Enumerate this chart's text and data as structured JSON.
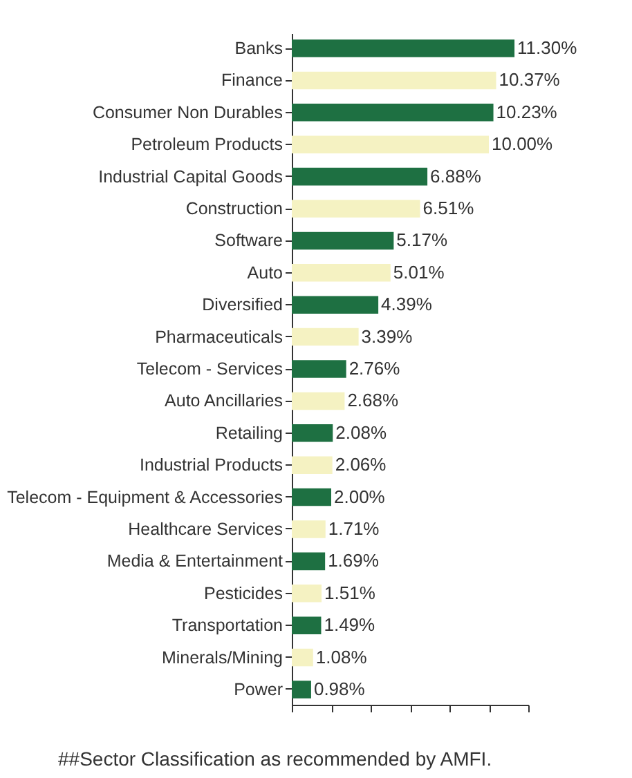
{
  "chart_data": {
    "type": "bar",
    "orientation": "horizontal",
    "categories": [
      "Banks",
      "Finance",
      "Consumer Non Durables",
      "Petroleum Products",
      "Industrial Capital Goods",
      "Construction",
      "Software",
      "Auto",
      "Diversified",
      "Pharmaceuticals",
      "Telecom - Services",
      "Auto Ancillaries",
      "Retailing",
      "Industrial Products",
      "Telecom -  Equipment & Accessories",
      "Healthcare Services",
      "Media & Entertainment",
      "Pesticides",
      "Transportation",
      "Minerals/Mining",
      "Power"
    ],
    "values": [
      11.3,
      10.37,
      10.23,
      10.0,
      6.88,
      6.51,
      5.17,
      5.01,
      4.39,
      3.39,
      2.76,
      2.68,
      2.08,
      2.06,
      2.0,
      1.71,
      1.69,
      1.51,
      1.49,
      1.08,
      0.98
    ],
    "value_labels": [
      "11.30%",
      "10.37%",
      "10.23%",
      "10.00%",
      "6.88%",
      "6.51%",
      "5.17%",
      "5.01%",
      "4.39%",
      "3.39%",
      "2.76%",
      "2.68%",
      "2.08%",
      "2.06%",
      "2.00%",
      "1.71%",
      "1.69%",
      "1.51%",
      "1.49%",
      "1.08%",
      "0.98%"
    ],
    "colors": [
      "#1e7042",
      "#f5f2c2",
      "#1e7042",
      "#f5f2c2",
      "#1e7042",
      "#f5f2c2",
      "#1e7042",
      "#f5f2c2",
      "#1e7042",
      "#f5f2c2",
      "#1e7042",
      "#f5f2c2",
      "#1e7042",
      "#f5f2c2",
      "#1e7042",
      "#f5f2c2",
      "#1e7042",
      "#f5f2c2",
      "#1e7042",
      "#f5f2c2",
      "#1e7042"
    ],
    "xlim": [
      0,
      12
    ],
    "xticks": [
      {
        "value": 0,
        "label": null
      },
      {
        "value": 2,
        "label": null
      },
      {
        "value": 4,
        "label": null
      },
      {
        "value": 6,
        "label": null
      },
      {
        "value": 8,
        "label": null
      },
      {
        "value": 10,
        "label": null
      },
      {
        "value": 12,
        "label": null
      }
    ],
    "tick_labels": "y",
    "grid": false,
    "annotations": [
      "##Sector Classification as recommended by AMFI."
    ]
  }
}
